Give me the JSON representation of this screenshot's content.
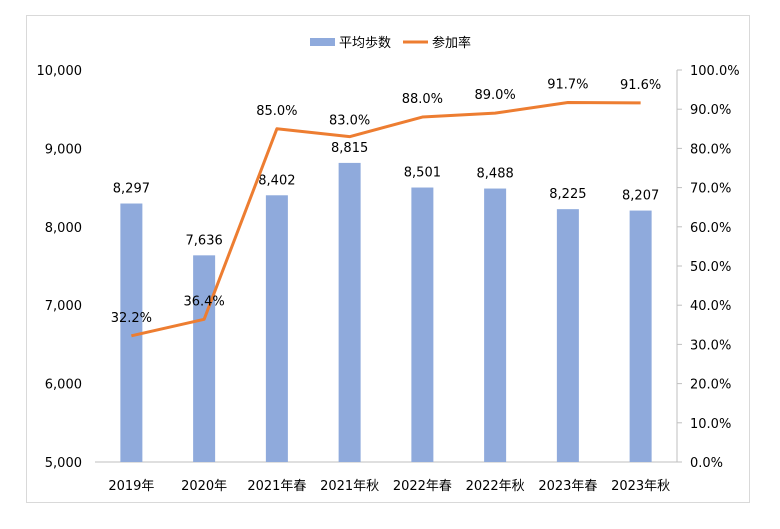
{
  "chart_data": {
    "type": "bar+line",
    "categories": [
      "2019年",
      "2020年",
      "2021年春",
      "2021年秋",
      "2022年春",
      "2022年秋",
      "2023年春",
      "2023年秋"
    ],
    "series": [
      {
        "name": "平均歩数",
        "type": "bar",
        "axis": "left",
        "color": "#8FAADC",
        "values": [
          8297,
          7636,
          8402,
          8815,
          8501,
          8488,
          8225,
          8207
        ],
        "labels": [
          "8,297",
          "7,636",
          "8,402",
          "8,815",
          "8,501",
          "8,488",
          "8,225",
          "8,207"
        ]
      },
      {
        "name": "参加率",
        "type": "line",
        "axis": "right",
        "color": "#ED7D31",
        "values": [
          32.2,
          36.4,
          85.0,
          83.0,
          88.0,
          89.0,
          91.7,
          91.6
        ],
        "labels": [
          "32.2%",
          "36.4%",
          "85.0%",
          "83.0%",
          "88.0%",
          "89.0%",
          "91.7%",
          "91.6%"
        ]
      }
    ],
    "y_left": {
      "range": [
        5000,
        10000
      ],
      "ticks": [
        5000,
        6000,
        7000,
        8000,
        9000,
        10000
      ],
      "tick_labels": [
        "5,000",
        "6,000",
        "7,000",
        "8,000",
        "9,000",
        "10,000"
      ]
    },
    "y_right": {
      "range": [
        0,
        100
      ],
      "ticks": [
        0,
        10,
        20,
        30,
        40,
        50,
        60,
        70,
        80,
        90,
        100
      ],
      "tick_labels": [
        "0.0%",
        "10.0%",
        "20.0%",
        "30.0%",
        "40.0%",
        "50.0%",
        "60.0%",
        "70.0%",
        "80.0%",
        "90.0%",
        "100.0%"
      ]
    },
    "grid": false,
    "legend": "top-center"
  }
}
